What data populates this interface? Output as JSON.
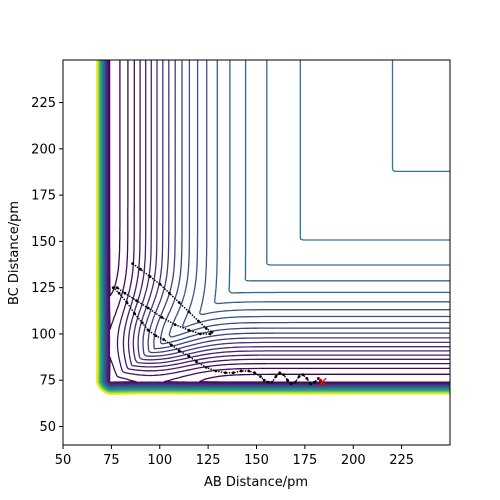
{
  "chart_data": {
    "type": "contour",
    "title": "",
    "xlabel": "AB Distance/pm",
    "ylabel": "BC Distance/pm",
    "xlim": [
      50,
      250
    ],
    "ylim": [
      40,
      248
    ],
    "xticks": [
      "50",
      "75",
      "100",
      "125",
      "150",
      "175",
      "200",
      "225"
    ],
    "yticks": [
      "50",
      "75",
      "100",
      "125",
      "150",
      "175",
      "200",
      "225"
    ],
    "colormap": [
      "#440154",
      "#46327e",
      "#365c8d",
      "#277f8e",
      "#1fa187",
      "#4ac16d",
      "#a0da39",
      "#fde725"
    ],
    "end_marker": {
      "symbol": "x",
      "color": "#ff0000",
      "x": 184,
      "y": 74
    },
    "trajectory_color": "#000000",
    "trajectory": [
      [
        86,
        138
      ],
      [
        90,
        135
      ],
      [
        95,
        131
      ],
      [
        100,
        127
      ],
      [
        105,
        122
      ],
      [
        110,
        117
      ],
      [
        115,
        112
      ],
      [
        120,
        107
      ],
      [
        124,
        103
      ],
      [
        127,
        101
      ],
      [
        126,
        100
      ],
      [
        121,
        100
      ],
      [
        115,
        102
      ],
      [
        108,
        105
      ],
      [
        101,
        109
      ],
      [
        94,
        114
      ],
      [
        88,
        118
      ],
      [
        82,
        122
      ],
      [
        78,
        125
      ],
      [
        76,
        125
      ],
      [
        79,
        122
      ],
      [
        83,
        117
      ],
      [
        87,
        111
      ],
      [
        91,
        106
      ],
      [
        94,
        102
      ],
      [
        98,
        99
      ],
      [
        102,
        97
      ],
      [
        106,
        94
      ],
      [
        110,
        91
      ],
      [
        115,
        88
      ],
      [
        119,
        85
      ],
      [
        124,
        82
      ],
      [
        129,
        80
      ],
      [
        134,
        79
      ],
      [
        138,
        79
      ],
      [
        142,
        80
      ],
      [
        146,
        80
      ],
      [
        149,
        79
      ],
      [
        152,
        77
      ],
      [
        154,
        75
      ],
      [
        156,
        74
      ],
      [
        158,
        74
      ],
      [
        160,
        77
      ],
      [
        162,
        79
      ],
      [
        164,
        78
      ],
      [
        166,
        75
      ],
      [
        168,
        73
      ],
      [
        170,
        74
      ],
      [
        172,
        77
      ],
      [
        174,
        78
      ],
      [
        176,
        76
      ],
      [
        178,
        73
      ],
      [
        180,
        74
      ],
      [
        182,
        76
      ],
      [
        183,
        75
      ],
      [
        184,
        74
      ]
    ]
  }
}
